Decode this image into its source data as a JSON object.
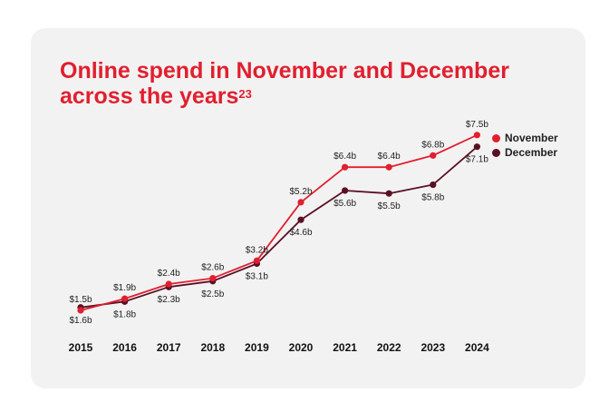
{
  "title": "Online spend in November and December across the years",
  "title_superscript": "23",
  "colors": {
    "card": "#f3f2f2",
    "title": "#e11f2f",
    "november": "#e11f2f",
    "december": "#5a1023"
  },
  "chart_data": {
    "type": "line",
    "x": [
      "2015",
      "2016",
      "2017",
      "2018",
      "2019",
      "2020",
      "2021",
      "2022",
      "2023",
      "2024"
    ],
    "series": [
      {
        "name": "November",
        "values": [
          1.5,
          1.9,
          2.4,
          2.6,
          3.2,
          5.2,
          6.4,
          6.4,
          6.8,
          7.5
        ],
        "labels": [
          "$1.5b",
          "$1.9b",
          "$2.4b",
          "$2.6b",
          "$3.2b",
          "$5.2b",
          "$6.4b",
          "$6.4b",
          "$6.8b",
          "$7.5b"
        ]
      },
      {
        "name": "December",
        "values": [
          1.6,
          1.8,
          2.3,
          2.5,
          3.1,
          4.6,
          5.6,
          5.5,
          5.8,
          7.1
        ],
        "labels": [
          "$1.6b",
          "$1.8b",
          "$2.3b",
          "$2.5b",
          "$3.1b",
          "$4.6b",
          "$5.6b",
          "$5.5b",
          "$5.8b",
          "$7.1b"
        ]
      }
    ],
    "y_unit": "$ billion",
    "legend": "top-right",
    "grid": false
  }
}
